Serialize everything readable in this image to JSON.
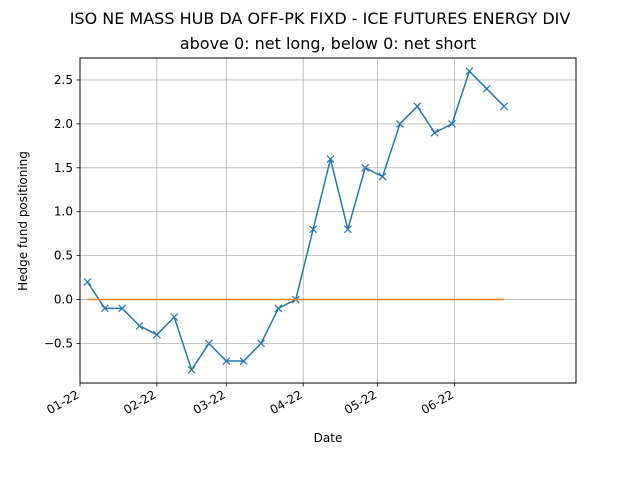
{
  "chart_data": {
    "type": "line",
    "title": "ISO NE MASS HUB DA OFF-PK FIXD - ICE FUTURES ENERGY DIV",
    "subtitle": "above 0: net long, below 0: net short",
    "xlabel": "Date",
    "ylabel": "Hedge fund positioning",
    "grid": true,
    "ylim": [
      -0.95,
      2.75
    ],
    "xlim": [
      "2022-01-01",
      "2022-07-20"
    ],
    "y_ticks": [
      -0.5,
      0.0,
      0.5,
      1.0,
      1.5,
      2.0,
      2.5
    ],
    "y_tick_labels": [
      "−0.5",
      "0.0",
      "0.5",
      "1.0",
      "1.5",
      "2.0",
      "2.5"
    ],
    "x_ticks": [
      "2022-01-01",
      "2022-02-01",
      "2022-03-01",
      "2022-04-01",
      "2022-05-01",
      "2022-06-01"
    ],
    "x_tick_labels": [
      "01-22",
      "02-22",
      "03-22",
      "04-22",
      "05-22",
      "06-22"
    ],
    "series": [
      {
        "color": "#1f77b4",
        "marker": "x",
        "x": [
          "2022-01-04",
          "2022-01-11",
          "2022-01-18",
          "2022-01-25",
          "2022-02-01",
          "2022-02-08",
          "2022-02-15",
          "2022-02-22",
          "2022-03-01",
          "2022-03-08",
          "2022-03-15",
          "2022-03-22",
          "2022-03-29",
          "2022-04-05",
          "2022-04-12",
          "2022-04-19",
          "2022-04-26",
          "2022-05-03",
          "2022-05-10",
          "2022-05-17",
          "2022-05-24",
          "2022-05-31",
          "2022-06-07",
          "2022-06-14",
          "2022-06-21"
        ],
        "values": [
          0.2,
          -0.1,
          -0.1,
          -0.3,
          -0.4,
          -0.2,
          -0.8,
          -0.5,
          -0.7,
          -0.7,
          -0.5,
          -0.1,
          0.0,
          0.8,
          1.6,
          0.8,
          1.5,
          1.4,
          2.0,
          2.2,
          1.9,
          2.0,
          2.6,
          2.4,
          2.2
        ]
      },
      {
        "color": "#ff7f0e",
        "marker": "none",
        "x": [
          "2022-01-04",
          "2022-06-21"
        ],
        "values": [
          0,
          0
        ]
      }
    ]
  }
}
